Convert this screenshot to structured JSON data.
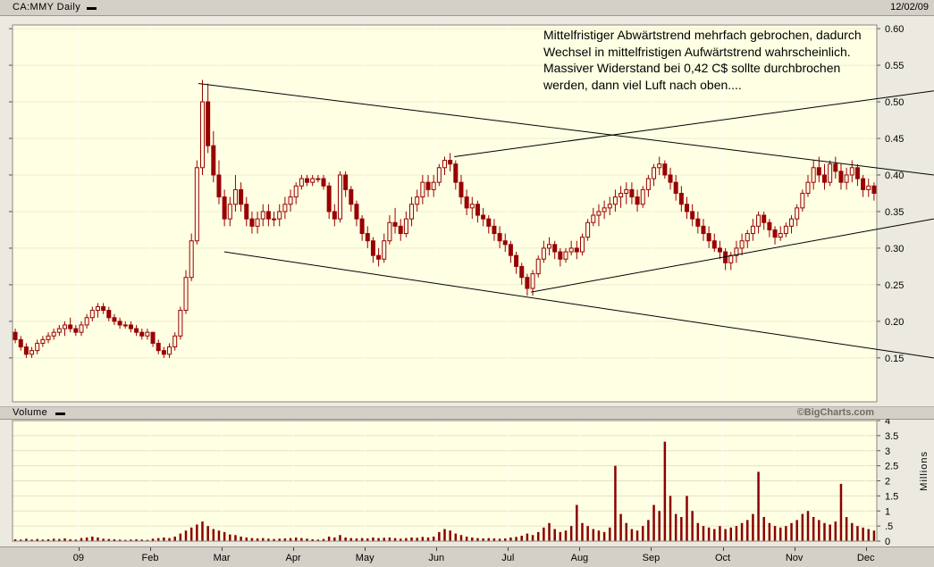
{
  "chart_data": {
    "type": "candlestick",
    "symbol_label": "CA:MMY Daily",
    "date": "12/02/09",
    "volume_label": "Volume",
    "credit": "©BigCharts.com",
    "annotation": "Mittelfristiger Abwärtstrend mehrfach gebrochen, dadurch\nWechsel in mittelfristigen Aufwärtstrend wahrscheinlich.\nMassiver Widerstand bei 0,42 C$ sollte durchbrochen\nwerden, dann viel Luft nach oben....",
    "price_axis": {
      "labels": [
        "0.60",
        "0.55",
        "0.50",
        "0.45",
        "0.40",
        "0.35",
        "0.30",
        "0.25",
        "0.20",
        "0.15"
      ],
      "values": [
        0.6,
        0.55,
        0.5,
        0.45,
        0.4,
        0.35,
        0.3,
        0.25,
        0.2,
        0.15
      ]
    },
    "volume_axis": {
      "labels": [
        "4",
        "3.5",
        "3",
        "2.5",
        "2",
        "1.5",
        "1",
        ".5",
        "0"
      ],
      "values": [
        4,
        3.5,
        3,
        2.5,
        2,
        1.5,
        1,
        0.5,
        0
      ],
      "unit": "Millions",
      "range": [
        0,
        4
      ]
    },
    "price_range": [
      0.09,
      0.605
    ],
    "months": {
      "labels": [
        "09",
        "Feb",
        "Mar",
        "Apr",
        "May",
        "Jun",
        "Jul",
        "Aug",
        "Sep",
        "Oct",
        "Nov",
        "Dec"
      ],
      "start_bars": [
        12,
        25,
        38,
        51,
        64,
        77,
        90,
        103,
        116,
        129,
        142,
        155
      ]
    },
    "columns": [
      "open",
      "high",
      "low",
      "close",
      "volume_millions"
    ],
    "candles": [
      [
        0.185,
        0.19,
        0.17,
        0.175,
        0.06
      ],
      [
        0.175,
        0.18,
        0.16,
        0.165,
        0.05
      ],
      [
        0.165,
        0.17,
        0.15,
        0.155,
        0.08
      ],
      [
        0.155,
        0.165,
        0.15,
        0.16,
        0.05
      ],
      [
        0.16,
        0.175,
        0.155,
        0.17,
        0.07
      ],
      [
        0.17,
        0.18,
        0.165,
        0.175,
        0.05
      ],
      [
        0.175,
        0.185,
        0.17,
        0.18,
        0.06
      ],
      [
        0.18,
        0.19,
        0.175,
        0.185,
        0.08
      ],
      [
        0.185,
        0.195,
        0.18,
        0.19,
        0.07
      ],
      [
        0.19,
        0.2,
        0.18,
        0.195,
        0.09
      ],
      [
        0.195,
        0.205,
        0.185,
        0.19,
        0.06
      ],
      [
        0.19,
        0.195,
        0.18,
        0.185,
        0.05
      ],
      [
        0.185,
        0.2,
        0.18,
        0.195,
        0.1
      ],
      [
        0.195,
        0.21,
        0.19,
        0.205,
        0.12
      ],
      [
        0.205,
        0.22,
        0.2,
        0.215,
        0.15
      ],
      [
        0.215,
        0.225,
        0.205,
        0.22,
        0.12
      ],
      [
        0.22,
        0.225,
        0.21,
        0.215,
        0.08
      ],
      [
        0.215,
        0.22,
        0.2,
        0.205,
        0.07
      ],
      [
        0.205,
        0.21,
        0.195,
        0.2,
        0.06
      ],
      [
        0.2,
        0.205,
        0.19,
        0.195,
        0.05
      ],
      [
        0.195,
        0.2,
        0.19,
        0.195,
        0.04
      ],
      [
        0.195,
        0.2,
        0.185,
        0.19,
        0.05
      ],
      [
        0.19,
        0.195,
        0.18,
        0.185,
        0.06
      ],
      [
        0.185,
        0.19,
        0.175,
        0.18,
        0.05
      ],
      [
        0.18,
        0.19,
        0.175,
        0.185,
        0.04
      ],
      [
        0.185,
        0.185,
        0.165,
        0.17,
        0.08
      ],
      [
        0.17,
        0.175,
        0.155,
        0.16,
        0.1
      ],
      [
        0.16,
        0.165,
        0.15,
        0.155,
        0.12
      ],
      [
        0.155,
        0.17,
        0.15,
        0.165,
        0.1
      ],
      [
        0.165,
        0.185,
        0.16,
        0.18,
        0.15
      ],
      [
        0.18,
        0.22,
        0.175,
        0.215,
        0.25
      ],
      [
        0.215,
        0.27,
        0.21,
        0.26,
        0.35
      ],
      [
        0.26,
        0.32,
        0.255,
        0.31,
        0.45
      ],
      [
        0.31,
        0.42,
        0.305,
        0.41,
        0.55
      ],
      [
        0.41,
        0.53,
        0.4,
        0.5,
        0.65
      ],
      [
        0.5,
        0.525,
        0.43,
        0.44,
        0.5
      ],
      [
        0.44,
        0.46,
        0.39,
        0.4,
        0.4
      ],
      [
        0.4,
        0.42,
        0.36,
        0.37,
        0.35
      ],
      [
        0.37,
        0.38,
        0.33,
        0.34,
        0.3
      ],
      [
        0.34,
        0.37,
        0.33,
        0.36,
        0.22
      ],
      [
        0.36,
        0.4,
        0.35,
        0.38,
        0.2
      ],
      [
        0.38,
        0.39,
        0.35,
        0.36,
        0.15
      ],
      [
        0.36,
        0.37,
        0.33,
        0.34,
        0.12
      ],
      [
        0.34,
        0.35,
        0.32,
        0.33,
        0.1
      ],
      [
        0.33,
        0.35,
        0.32,
        0.34,
        0.09
      ],
      [
        0.34,
        0.36,
        0.33,
        0.35,
        0.1
      ],
      [
        0.35,
        0.36,
        0.33,
        0.34,
        0.08
      ],
      [
        0.34,
        0.35,
        0.33,
        0.34,
        0.07
      ],
      [
        0.34,
        0.36,
        0.33,
        0.35,
        0.08
      ],
      [
        0.35,
        0.37,
        0.34,
        0.36,
        0.09
      ],
      [
        0.36,
        0.38,
        0.35,
        0.37,
        0.1
      ],
      [
        0.37,
        0.39,
        0.36,
        0.385,
        0.12
      ],
      [
        0.385,
        0.4,
        0.38,
        0.395,
        0.1
      ],
      [
        0.395,
        0.4,
        0.385,
        0.39,
        0.08
      ],
      [
        0.39,
        0.4,
        0.385,
        0.395,
        0.06
      ],
      [
        0.395,
        0.4,
        0.39,
        0.395,
        0.05
      ],
      [
        0.395,
        0.4,
        0.38,
        0.385,
        0.07
      ],
      [
        0.385,
        0.39,
        0.34,
        0.35,
        0.15
      ],
      [
        0.35,
        0.36,
        0.33,
        0.34,
        0.12
      ],
      [
        0.34,
        0.405,
        0.335,
        0.4,
        0.2
      ],
      [
        0.4,
        0.405,
        0.37,
        0.38,
        0.12
      ],
      [
        0.38,
        0.385,
        0.35,
        0.36,
        0.1
      ],
      [
        0.36,
        0.365,
        0.33,
        0.34,
        0.09
      ],
      [
        0.34,
        0.345,
        0.31,
        0.32,
        0.1
      ],
      [
        0.32,
        0.33,
        0.3,
        0.31,
        0.09
      ],
      [
        0.31,
        0.315,
        0.28,
        0.29,
        0.12
      ],
      [
        0.29,
        0.3,
        0.275,
        0.285,
        0.1
      ],
      [
        0.285,
        0.32,
        0.28,
        0.31,
        0.11
      ],
      [
        0.31,
        0.345,
        0.305,
        0.335,
        0.12
      ],
      [
        0.335,
        0.355,
        0.32,
        0.33,
        0.1
      ],
      [
        0.33,
        0.34,
        0.31,
        0.32,
        0.08
      ],
      [
        0.32,
        0.35,
        0.315,
        0.34,
        0.1
      ],
      [
        0.34,
        0.37,
        0.33,
        0.36,
        0.12
      ],
      [
        0.36,
        0.38,
        0.35,
        0.37,
        0.11
      ],
      [
        0.37,
        0.4,
        0.36,
        0.39,
        0.14
      ],
      [
        0.39,
        0.4,
        0.37,
        0.38,
        0.12
      ],
      [
        0.38,
        0.4,
        0.37,
        0.39,
        0.15
      ],
      [
        0.39,
        0.415,
        0.385,
        0.41,
        0.3
      ],
      [
        0.41,
        0.425,
        0.4,
        0.42,
        0.4
      ],
      [
        0.42,
        0.43,
        0.405,
        0.415,
        0.35
      ],
      [
        0.415,
        0.42,
        0.38,
        0.39,
        0.25
      ],
      [
        0.39,
        0.4,
        0.36,
        0.37,
        0.2
      ],
      [
        0.37,
        0.38,
        0.345,
        0.355,
        0.15
      ],
      [
        0.355,
        0.37,
        0.34,
        0.36,
        0.12
      ],
      [
        0.36,
        0.365,
        0.335,
        0.345,
        0.1
      ],
      [
        0.345,
        0.355,
        0.33,
        0.34,
        0.09
      ],
      [
        0.34,
        0.345,
        0.32,
        0.33,
        0.1
      ],
      [
        0.33,
        0.34,
        0.31,
        0.32,
        0.09
      ],
      [
        0.32,
        0.33,
        0.3,
        0.31,
        0.08
      ],
      [
        0.31,
        0.32,
        0.295,
        0.305,
        0.09
      ],
      [
        0.305,
        0.31,
        0.28,
        0.29,
        0.12
      ],
      [
        0.29,
        0.295,
        0.265,
        0.275,
        0.14
      ],
      [
        0.275,
        0.28,
        0.25,
        0.26,
        0.18
      ],
      [
        0.26,
        0.265,
        0.235,
        0.245,
        0.25
      ],
      [
        0.245,
        0.27,
        0.235,
        0.265,
        0.2
      ],
      [
        0.265,
        0.29,
        0.26,
        0.285,
        0.3
      ],
      [
        0.285,
        0.31,
        0.28,
        0.3,
        0.45
      ],
      [
        0.3,
        0.315,
        0.29,
        0.305,
        0.6
      ],
      [
        0.305,
        0.31,
        0.285,
        0.295,
        0.4
      ],
      [
        0.295,
        0.3,
        0.275,
        0.285,
        0.3
      ],
      [
        0.285,
        0.3,
        0.28,
        0.295,
        0.35
      ],
      [
        0.295,
        0.31,
        0.29,
        0.3,
        0.5
      ],
      [
        0.3,
        0.31,
        0.285,
        0.295,
        1.2
      ],
      [
        0.295,
        0.32,
        0.29,
        0.315,
        0.6
      ],
      [
        0.315,
        0.34,
        0.31,
        0.335,
        0.5
      ],
      [
        0.335,
        0.355,
        0.33,
        0.345,
        0.4
      ],
      [
        0.345,
        0.36,
        0.33,
        0.35,
        0.35
      ],
      [
        0.35,
        0.365,
        0.34,
        0.355,
        0.3
      ],
      [
        0.355,
        0.37,
        0.345,
        0.36,
        0.45
      ],
      [
        0.36,
        0.38,
        0.35,
        0.37,
        2.5
      ],
      [
        0.37,
        0.385,
        0.355,
        0.375,
        0.9
      ],
      [
        0.375,
        0.39,
        0.36,
        0.38,
        0.6
      ],
      [
        0.38,
        0.39,
        0.36,
        0.37,
        0.4
      ],
      [
        0.37,
        0.38,
        0.35,
        0.36,
        0.35
      ],
      [
        0.36,
        0.385,
        0.355,
        0.38,
        0.5
      ],
      [
        0.38,
        0.4,
        0.37,
        0.395,
        0.7
      ],
      [
        0.395,
        0.415,
        0.385,
        0.41,
        1.2
      ],
      [
        0.41,
        0.425,
        0.4,
        0.415,
        1.0
      ],
      [
        0.415,
        0.42,
        0.395,
        0.4,
        3.3
      ],
      [
        0.4,
        0.41,
        0.38,
        0.39,
        1.5
      ],
      [
        0.39,
        0.4,
        0.365,
        0.375,
        0.9
      ],
      [
        0.375,
        0.385,
        0.35,
        0.36,
        0.8
      ],
      [
        0.36,
        0.37,
        0.34,
        0.35,
        1.5
      ],
      [
        0.35,
        0.36,
        0.33,
        0.34,
        1.0
      ],
      [
        0.34,
        0.35,
        0.32,
        0.33,
        0.6
      ],
      [
        0.33,
        0.34,
        0.31,
        0.32,
        0.5
      ],
      [
        0.32,
        0.33,
        0.3,
        0.31,
        0.45
      ],
      [
        0.31,
        0.32,
        0.295,
        0.3,
        0.4
      ],
      [
        0.3,
        0.31,
        0.285,
        0.295,
        0.5
      ],
      [
        0.295,
        0.3,
        0.27,
        0.28,
        0.4
      ],
      [
        0.28,
        0.295,
        0.27,
        0.29,
        0.45
      ],
      [
        0.29,
        0.31,
        0.28,
        0.3,
        0.5
      ],
      [
        0.3,
        0.32,
        0.29,
        0.31,
        0.6
      ],
      [
        0.31,
        0.325,
        0.3,
        0.32,
        0.7
      ],
      [
        0.32,
        0.34,
        0.31,
        0.33,
        0.9
      ],
      [
        0.33,
        0.35,
        0.32,
        0.345,
        2.3
      ],
      [
        0.345,
        0.35,
        0.325,
        0.335,
        0.8
      ],
      [
        0.335,
        0.34,
        0.315,
        0.325,
        0.6
      ],
      [
        0.325,
        0.33,
        0.305,
        0.315,
        0.5
      ],
      [
        0.315,
        0.33,
        0.31,
        0.32,
        0.45
      ],
      [
        0.32,
        0.335,
        0.315,
        0.33,
        0.5
      ],
      [
        0.33,
        0.345,
        0.32,
        0.34,
        0.6
      ],
      [
        0.34,
        0.36,
        0.33,
        0.355,
        0.7
      ],
      [
        0.355,
        0.38,
        0.35,
        0.375,
        0.9
      ],
      [
        0.375,
        0.4,
        0.37,
        0.39,
        1.0
      ],
      [
        0.39,
        0.42,
        0.38,
        0.41,
        0.8
      ],
      [
        0.41,
        0.425,
        0.39,
        0.4,
        0.7
      ],
      [
        0.4,
        0.415,
        0.38,
        0.39,
        0.6
      ],
      [
        0.39,
        0.42,
        0.385,
        0.415,
        0.55
      ],
      [
        0.415,
        0.425,
        0.395,
        0.405,
        0.65
      ],
      [
        0.405,
        0.415,
        0.38,
        0.39,
        1.9
      ],
      [
        0.39,
        0.41,
        0.38,
        0.4,
        0.8
      ],
      [
        0.4,
        0.42,
        0.39,
        0.41,
        0.6
      ],
      [
        0.41,
        0.415,
        0.385,
        0.395,
        0.5
      ],
      [
        0.395,
        0.4,
        0.37,
        0.38,
        0.45
      ],
      [
        0.38,
        0.395,
        0.37,
        0.385,
        0.4
      ],
      [
        0.385,
        0.39,
        0.365,
        0.375,
        0.35
      ]
    ],
    "trend_lines": [
      {
        "from": [
          0.215,
          0.525
        ],
        "to": [
          1.066,
          0.4
        ]
      },
      {
        "from": [
          0.511,
          0.425
        ],
        "to": [
          1.066,
          0.515
        ]
      },
      {
        "from": [
          0.245,
          0.295
        ],
        "to": [
          1.066,
          0.15
        ]
      },
      {
        "from": [
          0.6,
          0.24
        ],
        "to": [
          1.066,
          0.34
        ]
      }
    ],
    "colors": {
      "candle": "#990000",
      "volume": "#8B0000",
      "plot_bg": "#FFFFE3",
      "trend_line": "#000000"
    }
  }
}
